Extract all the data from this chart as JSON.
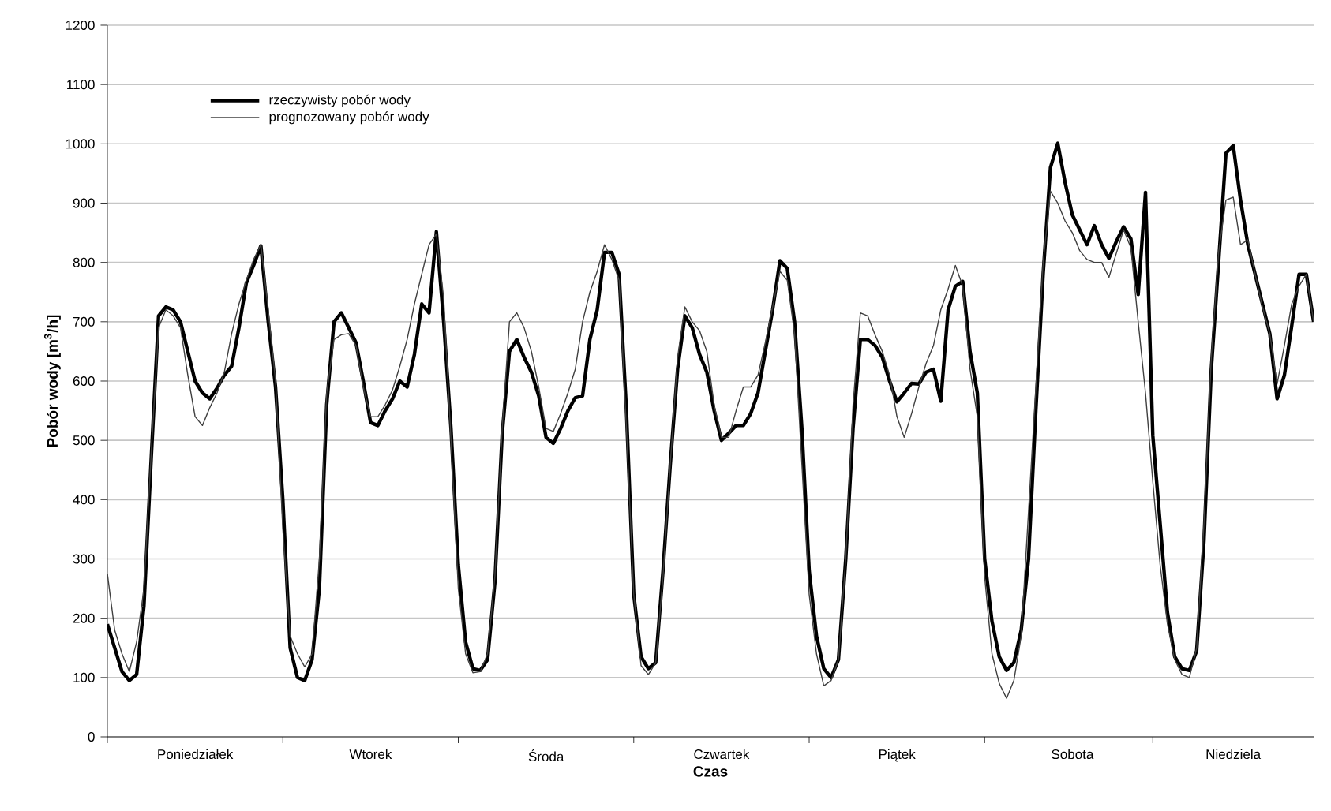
{
  "chart_data": {
    "type": "line",
    "xlabel": "Czas",
    "ylabel": "Pobór wody [m$^{3}$/h]",
    "categories": [
      null,
      null,
      null,
      null,
      null,
      null,
      null,
      null,
      null,
      null,
      null,
      null,
      "Poniedziałek",
      null,
      null,
      null,
      null,
      null,
      null,
      null,
      null,
      null,
      null,
      null,
      null,
      null,
      null,
      null,
      null,
      null,
      null,
      null,
      null,
      null,
      null,
      null,
      "Wtorek",
      null,
      null,
      null,
      null,
      null,
      null,
      null,
      null,
      null,
      null,
      null,
      null,
      null,
      null,
      null,
      null,
      null,
      null,
      null,
      null,
      null,
      null,
      null,
      "Środa",
      null,
      null,
      null,
      null,
      null,
      null,
      null,
      null,
      null,
      null,
      null,
      null,
      null,
      null,
      null,
      null,
      null,
      null,
      null,
      null,
      null,
      null,
      null,
      "Czwartek",
      null,
      null,
      null,
      null,
      null,
      null,
      null,
      null,
      null,
      null,
      null,
      null,
      null,
      null,
      null,
      null,
      null,
      null,
      null,
      null,
      null,
      null,
      null,
      "Piątek",
      null,
      null,
      null,
      null,
      null,
      null,
      null,
      null,
      null,
      null,
      null,
      null,
      null,
      null,
      null,
      null,
      null,
      null,
      null,
      null,
      null,
      null,
      null,
      "Sobota",
      null,
      null,
      null,
      null,
      null,
      null,
      null,
      null,
      null,
      null,
      null,
      null,
      null,
      null,
      null,
      null,
      null,
      null,
      null,
      null,
      null,
      "Niedziela",
      null,
      null,
      null,
      null,
      null,
      null,
      null,
      null,
      null,
      null,
      null
    ],
    "ylim": [
      0,
      1200
    ],
    "yticks": [
      0,
      100,
      200,
      300,
      400,
      500,
      600,
      700,
      800,
      900,
      1000,
      1100,
      1200
    ],
    "grid": "y",
    "legend": "top left",
    "series": [
      {
        "name": "rzeczywisty pobór wody",
        "color": "#000000",
        "values": [
          190,
          150,
          110,
          95,
          105,
          220,
          470,
          710,
          725,
          720,
          700,
          650,
          600,
          580,
          570,
          588,
          610,
          625,
          690,
          765,
          795,
          828,
          700,
          590,
          400,
          150,
          100,
          95,
          130,
          250,
          560,
          700,
          715,
          690,
          665,
          600,
          530,
          525,
          550,
          570,
          600,
          590,
          645,
          730,
          715,
          852,
          700,
          520,
          290,
          160,
          115,
          112,
          130,
          260,
          510,
          650,
          670,
          640,
          615,
          575,
          505,
          495,
          520,
          550,
          572,
          575,
          670,
          720,
          817,
          817,
          780,
          550,
          240,
          135,
          115,
          125,
          280,
          460,
          620,
          710,
          690,
          645,
          615,
          550,
          500,
          512,
          525,
          525,
          545,
          580,
          650,
          720,
          803,
          790,
          700,
          520,
          280,
          170,
          115,
          100,
          130,
          300,
          520,
          670,
          670,
          660,
          640,
          600,
          565,
          580,
          596,
          595,
          615,
          620,
          566,
          720,
          760,
          768,
          650,
          580,
          300,
          195,
          135,
          112,
          125,
          180,
          300,
          550,
          780,
          960,
          1001,
          935,
          880,
          855,
          830,
          862,
          830,
          807,
          835,
          860,
          840,
          746,
          918,
          508,
          360,
          210,
          135,
          115,
          112,
          145,
          330,
          620,
          800,
          984,
          997,
          905,
          830,
          780,
          730,
          680,
          570,
          610,
          693,
          780,
          780,
          700
        ]
      },
      {
        "name": "prognozowany pobór wody",
        "color": "#404040",
        "values": [
          275,
          180,
          140,
          110,
          160,
          250,
          480,
          690,
          720,
          710,
          690,
          610,
          540,
          525,
          555,
          580,
          615,
          680,
          730,
          770,
          805,
          830,
          720,
          600,
          350,
          170,
          140,
          118,
          140,
          300,
          580,
          670,
          678,
          680,
          660,
          590,
          540,
          540,
          560,
          585,
          625,
          670,
          730,
          780,
          830,
          848,
          740,
          500,
          250,
          140,
          108,
          110,
          140,
          270,
          520,
          700,
          715,
          690,
          650,
          590,
          520,
          515,
          545,
          580,
          620,
          700,
          750,
          785,
          830,
          805,
          770,
          520,
          240,
          120,
          105,
          125,
          270,
          460,
          640,
          725,
          700,
          685,
          650,
          560,
          505,
          505,
          550,
          590,
          590,
          610,
          665,
          725,
          785,
          770,
          680,
          460,
          240,
          140,
          86,
          95,
          130,
          300,
          560,
          715,
          710,
          678,
          650,
          610,
          540,
          505,
          545,
          590,
          630,
          660,
          720,
          755,
          795,
          760,
          620,
          540,
          270,
          140,
          90,
          65,
          95,
          170,
          380,
          590,
          800,
          920,
          900,
          870,
          850,
          820,
          805,
          800,
          800,
          775,
          815,
          855,
          825,
          700,
          580,
          430,
          290,
          190,
          130,
          105,
          100,
          150,
          360,
          640,
          817,
          905,
          910,
          830,
          838,
          780,
          725,
          680,
          595,
          660,
          730,
          760,
          780,
          700
        ]
      }
    ]
  }
}
